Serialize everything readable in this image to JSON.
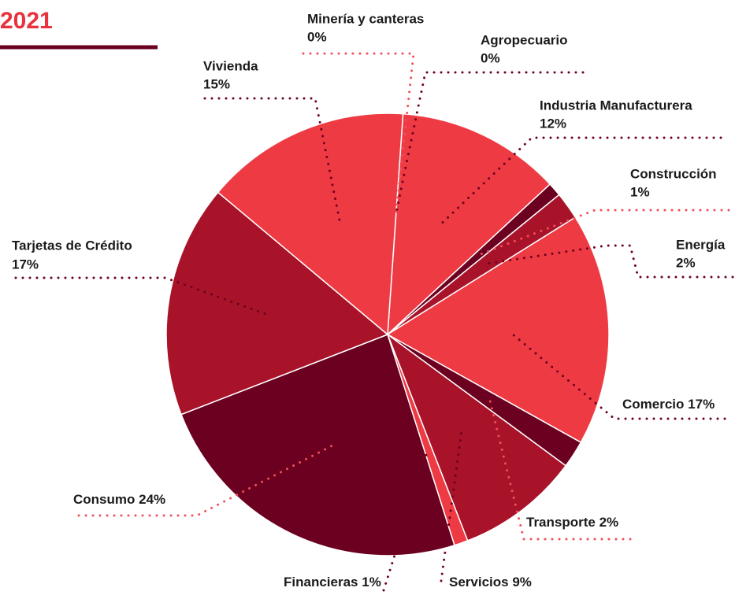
{
  "chart_data": {
    "type": "pie",
    "title": "2021",
    "categories": [
      "Minería y canteras",
      "Agropecuario",
      "Industria Manufacturera",
      "Construcción",
      "Energía",
      "Comercio",
      "Transporte",
      "Servicios",
      "Financieras",
      "Consumo",
      "Tarjetas de Crédito",
      "Vivienda"
    ],
    "values": [
      0,
      0,
      12,
      1,
      2,
      17,
      2,
      9,
      1,
      24,
      17,
      15
    ],
    "value_labels": [
      "0%",
      "0%",
      "12%",
      "1%",
      "2%",
      "17%",
      "2%",
      "9%",
      "1%",
      "24%",
      "17%",
      "15%"
    ],
    "colors": [
      "#6b0020",
      "#a8132a",
      "#ee3a43",
      "#6b0020",
      "#a8132a",
      "#ee3a43",
      "#6b0020",
      "#a8132a",
      "#ee3a43",
      "#6b0020",
      "#a8132a",
      "#ee3a43"
    ]
  }
}
